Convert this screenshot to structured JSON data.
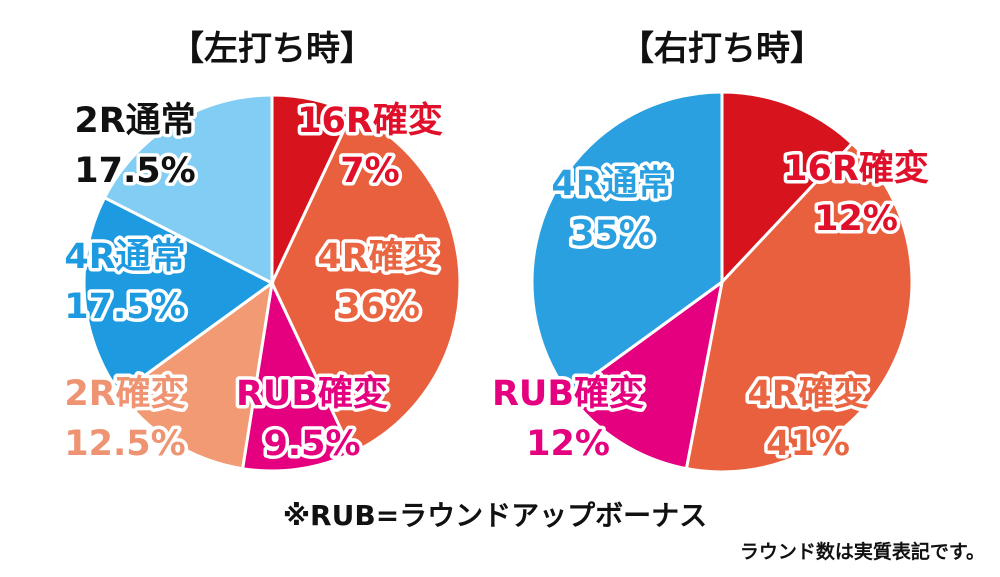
{
  "chart_data": [
    {
      "type": "pie",
      "title": "【左打ち時】",
      "slices": [
        {
          "label": "16R確変",
          "value_label": "7%",
          "value": 7,
          "color": "#d7141e",
          "text_color": "#e0102a"
        },
        {
          "label": "4R確変",
          "value_label": "36%",
          "value": 36,
          "color": "#e9603f",
          "text_color": "#ea6542"
        },
        {
          "label": "RUB確変",
          "value_label": "9.5%",
          "value": 9.5,
          "color": "#e4007f",
          "text_color": "#e4007f"
        },
        {
          "label": "2R確変",
          "value_label": "12.5%",
          "value": 12.5,
          "color": "#f19a73",
          "text_color": "#ef9473"
        },
        {
          "label": "4R通常",
          "value_label": "17.5%",
          "value": 17.5,
          "color": "#1e9be0",
          "text_color": "#1e9be0"
        },
        {
          "label": "2R通常",
          "value_label": "17.5%",
          "value": 17.5,
          "color": "#82cdf3",
          "text_color": "#111111"
        }
      ]
    },
    {
      "type": "pie",
      "title": "【右打ち時】",
      "slices": [
        {
          "label": "16R確変",
          "value_label": "12%",
          "value": 12,
          "color": "#d7141e",
          "text_color": "#e0102a"
        },
        {
          "label": "4R確変",
          "value_label": "41%",
          "value": 41,
          "color": "#e9603f",
          "text_color": "#ea6542"
        },
        {
          "label": "RUB確変",
          "value_label": "12%",
          "value": 12,
          "color": "#e4007f",
          "text_color": "#e4007f"
        },
        {
          "label": "4R通常",
          "value_label": "35%",
          "value": 35,
          "color": "#2aa0e0",
          "text_color": "#2aa0e0"
        }
      ]
    }
  ],
  "footnote": "※RUB=ラウンドアップボーナス",
  "subnote": "ラウンド数は実質表記です。"
}
